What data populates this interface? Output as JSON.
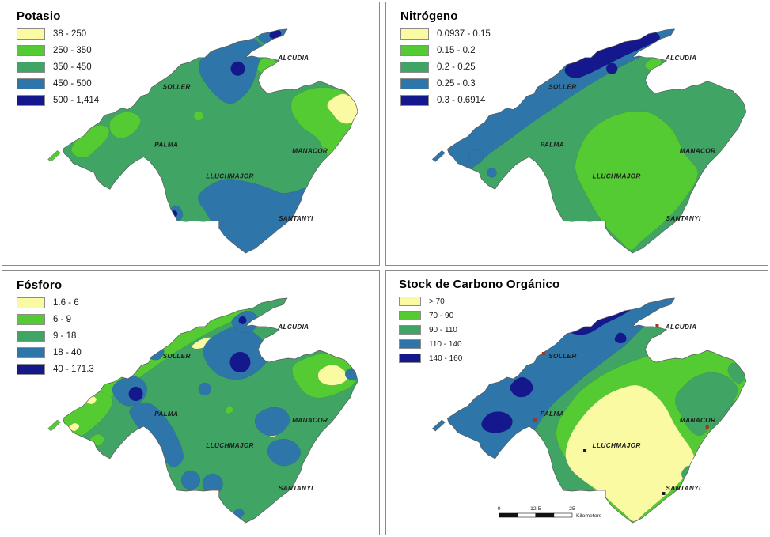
{
  "panels": [
    {
      "id": "potasio",
      "title": "Potasio",
      "legend": [
        {
          "label": "38 - 250",
          "color": "#fafaa2"
        },
        {
          "label": "250 - 350",
          "color": "#55cb33"
        },
        {
          "label": "350 - 450",
          "color": "#3fa464"
        },
        {
          "label": "450 - 500",
          "color": "#2e76a9"
        },
        {
          "label": "500 - 1,414",
          "color": "#15188c"
        }
      ]
    },
    {
      "id": "nitrogeno",
      "title": "Nitrógeno",
      "legend": [
        {
          "label": "0.0937 - 0.15",
          "color": "#fafaa2"
        },
        {
          "label": "0.15 - 0.2",
          "color": "#55cb33"
        },
        {
          "label": "0.2 - 0.25",
          "color": "#3fa464"
        },
        {
          "label": "0.25 - 0.3",
          "color": "#2e76a9"
        },
        {
          "label": "0.3 - 0.6914",
          "color": "#15188c"
        }
      ]
    },
    {
      "id": "fosforo",
      "title": "Fósforo",
      "legend": [
        {
          "label": "1.6 - 6",
          "color": "#fafaa2"
        },
        {
          "label": "6 - 9",
          "color": "#55cb33"
        },
        {
          "label": "9 - 18",
          "color": "#3fa464"
        },
        {
          "label": "18 - 40",
          "color": "#2e76a9"
        },
        {
          "label": "40 - 171.3",
          "color": "#15188c"
        }
      ]
    },
    {
      "id": "carbono",
      "title": "Stock de Carbono Orgánico",
      "legend": [
        {
          "label": "> 70",
          "color": "#fafaa2"
        },
        {
          "label": "70 - 90",
          "color": "#55cb33"
        },
        {
          "label": "90 - 110",
          "color": "#3fa464"
        },
        {
          "label": "110 - 140",
          "color": "#2e76a9"
        },
        {
          "label": "140 - 160",
          "color": "#15188c"
        }
      ]
    }
  ],
  "cities": [
    {
      "name": "SOLLER"
    },
    {
      "name": "ALCUDIA"
    },
    {
      "name": "PALMA"
    },
    {
      "name": "MANACOR"
    },
    {
      "name": "LLUCHMAJOR"
    },
    {
      "name": "SANTANYI"
    }
  ],
  "scalebar": {
    "ticks": [
      "0",
      "12.5",
      "25"
    ],
    "unit": "Kilometers"
  },
  "marker_colors": {
    "town_red": "#9c3a20",
    "town_black": "#1a1a1a"
  },
  "outline_color": "#5a5a5a"
}
